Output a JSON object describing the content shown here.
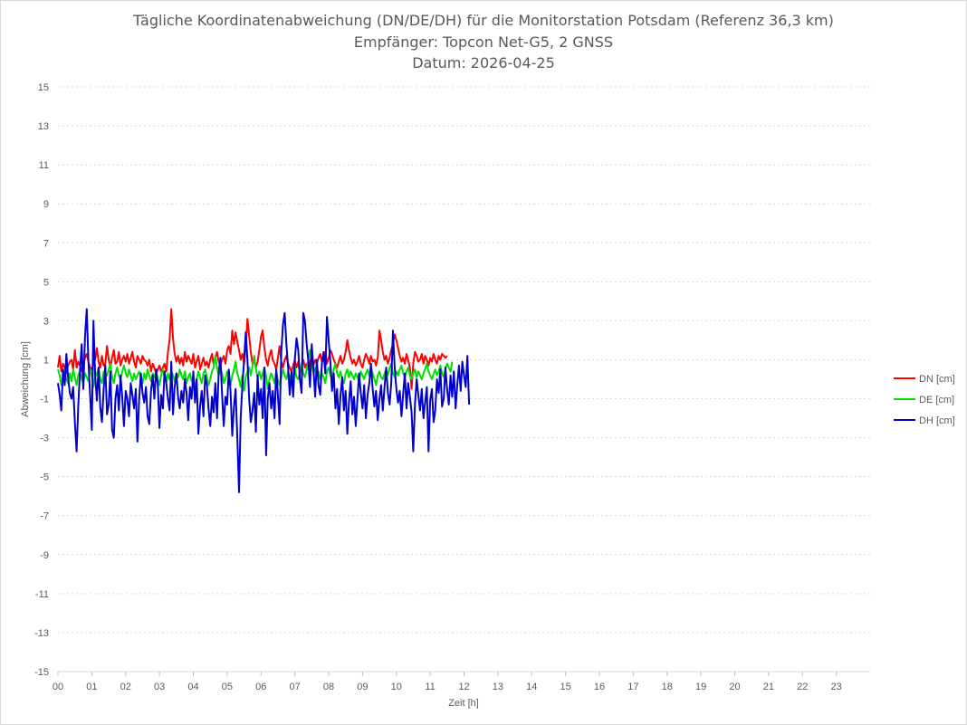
{
  "chart_data": {
    "type": "line",
    "title": "Tägliche Koordinatenabweichung (DN/DE/DH) für die Monitorstation Potsdam (Referenz 36,3 km)",
    "subtitle": "Empfänger: Topcon Net-G5, 2 GNSS",
    "date_line": "Datum: 2026-04-25",
    "xlabel": "Zeit [h]",
    "ylabel": "Abweichung [cm]",
    "xlim": [
      0,
      24
    ],
    "ylim": [
      -15,
      15
    ],
    "x_ticks": [
      "00",
      "01",
      "02",
      "03",
      "04",
      "05",
      "06",
      "07",
      "08",
      "09",
      "10",
      "11",
      "12",
      "13",
      "14",
      "15",
      "16",
      "17",
      "18",
      "19",
      "20",
      "21",
      "22",
      "23"
    ],
    "y_ticks": [
      15,
      13,
      11,
      9,
      7,
      5,
      3,
      1,
      -1,
      -3,
      -5,
      -7,
      -9,
      -11,
      -13,
      -15
    ],
    "grid": true,
    "legend_position": "right",
    "sample_interval_h": 0.05,
    "series": [
      {
        "name": "DN [cm]",
        "color": "#ff0000",
        "values": [
          0.6,
          1.2,
          0.4,
          0.8,
          0.6,
          0.3,
          0.7,
          0.9,
          1.0,
          0.5,
          1.5,
          0.6,
          0.9,
          0.7,
          0.4,
          0.8,
          1.1,
          1.3,
          0.9,
          0.6,
          0.5,
          0.8,
          1.0,
          1.6,
          0.9,
          0.6,
          1.2,
          0.7,
          0.8,
          1.7,
          1.0,
          0.6,
          1.1,
          1.5,
          0.8,
          0.9,
          1.4,
          0.7,
          1.0,
          1.2,
          0.9,
          1.3,
          0.8,
          1.1,
          1.4,
          0.9,
          0.6,
          1.2,
          1.0,
          0.8,
          1.2,
          1.0,
          0.9,
          0.7,
          1.0,
          0.4,
          0.8,
          0.6,
          0.3,
          0.5,
          0.7,
          0.4,
          0.6,
          0.8,
          0.4,
          1.4,
          2.0,
          3.6,
          2.1,
          1.3,
          0.9,
          1.2,
          0.8,
          1.1,
          0.7,
          1.4,
          0.9,
          1.2,
          1.0,
          0.8,
          1.3,
          0.6,
          0.9,
          1.2,
          0.5,
          0.8,
          1.1,
          0.7,
          0.9,
          0.6,
          1.0,
          1.3,
          0.8,
          1.1,
          1.4,
          0.9,
          0.7,
          1.0,
          1.2,
          0.8,
          1.5,
          1.7,
          1.3,
          2.5,
          1.8,
          2.4,
          1.9,
          1.5,
          1.0,
          1.3,
          0.8,
          1.7,
          3.1,
          2.2,
          1.4,
          0.8,
          1.0,
          0.6,
          0.9,
          1.5,
          2.2,
          2.5,
          1.6,
          1.0,
          0.7,
          1.2,
          1.5,
          1.0,
          0.8,
          0.5,
          1.1,
          1.7,
          0.9,
          0.6,
          1.0,
          1.2,
          0.8,
          0.6,
          0.4,
          0.7,
          1.0,
          0.6,
          0.9,
          0.3,
          0.7,
          1.0,
          0.6,
          0.8,
          0.5,
          0.9,
          1.2,
          0.7,
          1.0,
          0.8,
          1.1,
          1.3,
          0.9,
          1.0,
          1.4,
          0.8,
          1.1,
          1.5,
          1.3,
          1.0,
          0.8,
          0.6,
          0.9,
          1.2,
          0.8,
          1.0,
          1.4,
          2.0,
          1.5,
          1.1,
          0.8,
          1.0,
          0.7,
          0.9,
          1.2,
          0.8,
          0.6,
          1.0,
          1.3,
          1.1,
          0.8,
          1.2,
          0.9,
          1.0,
          0.7,
          1.1,
          2.5,
          2.0,
          1.4,
          1.0,
          1.2,
          0.8,
          1.1,
          1.5,
          1.8,
          2.3,
          2.0,
          1.6,
          1.2,
          0.9,
          1.1,
          0.8,
          1.3,
          1.0,
          0.6,
          -0.5,
          0.8,
          1.4,
          1.2,
          0.9,
          1.0,
          1.3,
          0.8,
          1.2,
          1.0,
          0.7,
          1.1,
          0.9,
          1.3,
          1.0,
          0.8,
          1.2,
          1.0,
          1.3,
          1.2,
          1.1,
          1.2
        ]
      },
      {
        "name": "DE [cm]",
        "color": "#00e000",
        "values": [
          0.5,
          0.2,
          -0.3,
          0.1,
          0.4,
          0.0,
          -0.2,
          0.3,
          -0.1,
          0.5,
          0.1,
          -0.3,
          0.2,
          0.4,
          0.0,
          -0.2,
          0.3,
          0.1,
          -0.1,
          0.5,
          0.2,
          -0.4,
          0.1,
          0.3,
          0.6,
          0.0,
          -0.2,
          0.4,
          0.1,
          0.2,
          0.5,
          0.8,
          0.1,
          -0.2,
          0.3,
          0.6,
          0.2,
          0.0,
          0.4,
          0.7,
          0.3,
          0.1,
          0.5,
          0.2,
          -0.1,
          0.3,
          0.0,
          0.2,
          0.4,
          0.1,
          -0.2,
          0.3,
          0.0,
          0.5,
          0.2,
          -0.1,
          0.3,
          0.1,
          0.4,
          0.0,
          -0.3,
          0.2,
          0.5,
          0.1,
          -0.2,
          0.3,
          0.0,
          0.4,
          0.2,
          -0.1,
          0.3,
          0.1,
          0.5,
          0.2,
          0.0,
          0.4,
          -0.2,
          0.1,
          0.3,
          -0.1,
          0.2,
          -0.5,
          0.0,
          0.4,
          0.1,
          -0.2,
          0.3,
          0.5,
          0.1,
          -0.3,
          0.0,
          0.4,
          0.6,
          1.2,
          0.6,
          0.2,
          0.5,
          0.3,
          -0.2,
          0.0,
          0.4,
          0.1,
          -0.3,
          0.2,
          0.5,
          0.9,
          0.3,
          0.0,
          -0.4,
          0.2,
          -0.6,
          0.1,
          0.4,
          0.6,
          0.2,
          0.7,
          1.2,
          0.5,
          0.1,
          0.4,
          0.0,
          0.3,
          0.6,
          0.2,
          -0.5,
          0.0,
          0.3,
          0.1,
          -0.2,
          0.4,
          0.0,
          -0.3,
          0.1,
          0.5,
          0.2,
          0.0,
          0.4,
          0.1,
          -0.2,
          0.3,
          0.6,
          0.1,
          0.0,
          0.4,
          0.8,
          0.3,
          0.1,
          0.5,
          1.0,
          1.5,
          0.8,
          0.3,
          0.6,
          0.2,
          0.4,
          0.0,
          0.3,
          0.1,
          -0.2,
          0.4,
          0.6,
          0.2,
          0.0,
          0.5,
          0.8,
          0.3,
          0.1,
          0.4,
          0.0,
          -0.2,
          0.3,
          0.5,
          0.1,
          0.4,
          0.2,
          0.0,
          0.3,
          0.1,
          -0.1,
          0.4,
          0.2,
          0.0,
          0.3,
          0.5,
          0.2,
          0.6,
          0.3,
          0.0,
          -0.3,
          0.2,
          0.4,
          0.1,
          0.0,
          0.3,
          0.5,
          0.2,
          0.6,
          0.8,
          0.3,
          0.1,
          0.4,
          0.2,
          0.5,
          0.7,
          0.3,
          0.1,
          0.4,
          0.6,
          0.2,
          0.0,
          0.3,
          0.5,
          0.1,
          0.4,
          0.2,
          0.0,
          0.3,
          0.5,
          0.8,
          0.4,
          0.2,
          0.0,
          0.3,
          0.5,
          0.2,
          0.4,
          0.7,
          0.3,
          0.1,
          0.5,
          0.8,
          0.6,
          0.4,
          0.9
        ]
      },
      {
        "name": "DH [cm]",
        "color": "#0000cc",
        "values": [
          -0.2,
          -0.8,
          -1.6,
          0.5,
          -0.3,
          1.3,
          0.1,
          -0.7,
          -1.0,
          -0.4,
          -2.2,
          -3.7,
          -1.4,
          0.4,
          1.8,
          -0.5,
          2.2,
          3.6,
          1.0,
          -0.8,
          -2.6,
          3.0,
          0.2,
          -1.1,
          0.6,
          -1.4,
          -2.2,
          -0.5,
          0.7,
          -1.8,
          -1.3,
          0.4,
          -2.6,
          -3.0,
          -1.0,
          -0.3,
          -1.6,
          0.2,
          -0.9,
          -2.4,
          -0.6,
          -1.0,
          -1.9,
          -0.2,
          -0.8,
          -1.5,
          -0.5,
          -3.2,
          -1.0,
          0.3,
          -0.7,
          -1.2,
          -0.4,
          -1.9,
          -2.3,
          -0.6,
          0.2,
          -1.0,
          0.5,
          -0.3,
          -2.5,
          -0.8,
          -1.5,
          0.4,
          -0.2,
          -1.0,
          -1.6,
          0.9,
          -1.8,
          -0.4,
          0.3,
          -0.9,
          -1.5,
          -0.6,
          -1.2,
          0.0,
          -0.7,
          -2.1,
          -0.4,
          -1.0,
          0.4,
          -1.2,
          0.0,
          -2.8,
          -1.4,
          -0.6,
          -1.9,
          0.2,
          -0.3,
          -1.5,
          -2.4,
          -0.9,
          -1.7,
          -0.2,
          -2.0,
          0.3,
          1.1,
          -0.8,
          -2.4,
          -0.9,
          -1.3,
          0.5,
          -0.6,
          -2.9,
          -1.4,
          -0.5,
          -3.0,
          -5.8,
          -2.0,
          -0.3,
          1.0,
          2.4,
          1.0,
          -1.0,
          -2.2,
          -1.6,
          -0.7,
          -2.7,
          0.2,
          -1.3,
          -0.5,
          -2.0,
          0.6,
          -3.9,
          -1.0,
          -0.2,
          -1.5,
          -0.6,
          -2.0,
          0.5,
          -0.8,
          -2.3,
          1.4,
          2.8,
          3.4,
          1.8,
          0.6,
          -0.8,
          0.4,
          -0.9,
          1.0,
          2.1,
          1.5,
          0.0,
          -0.7,
          3.4,
          3.0,
          1.8,
          0.9,
          -0.4,
          1.8,
          0.5,
          -0.9,
          1.0,
          -0.3,
          -0.8,
          0.8,
          1.4,
          0.3,
          3.2,
          2.0,
          0.9,
          -0.6,
          0.3,
          -1.5,
          -0.5,
          -2.3,
          -0.8,
          0.1,
          -1.6,
          -0.6,
          -2.8,
          -1.2,
          -0.1,
          -1.8,
          -0.9,
          -2.4,
          -1.0,
          0.3,
          -0.7,
          -1.5,
          -0.3,
          -2.0,
          -0.8,
          -0.2,
          0.8,
          -0.5,
          -1.4,
          -0.6,
          -2.1,
          -1.0,
          -0.3,
          -1.6,
          -0.4,
          0.6,
          -0.7,
          -1.3,
          -0.2,
          2.5,
          0.6,
          -0.5,
          -1.2,
          -0.6,
          -1.9,
          -0.8,
          0.3,
          -1.5,
          -0.2,
          -0.9,
          -1.7,
          -3.7,
          -1.3,
          0.0,
          -0.8,
          -1.6,
          -0.5,
          -2.0,
          -1.2,
          -0.4,
          -3.7,
          -1.1,
          -0.5,
          -2.2,
          -1.6,
          0.0,
          -0.7,
          0.5,
          -1.4,
          -1.0,
          0.6,
          -0.5,
          -1.3,
          0.2,
          -0.9,
          0.4,
          -1.5,
          -0.3,
          0.7,
          -0.6,
          0.9,
          0.2,
          -0.4,
          1.2,
          -1.3
        ]
      }
    ]
  }
}
